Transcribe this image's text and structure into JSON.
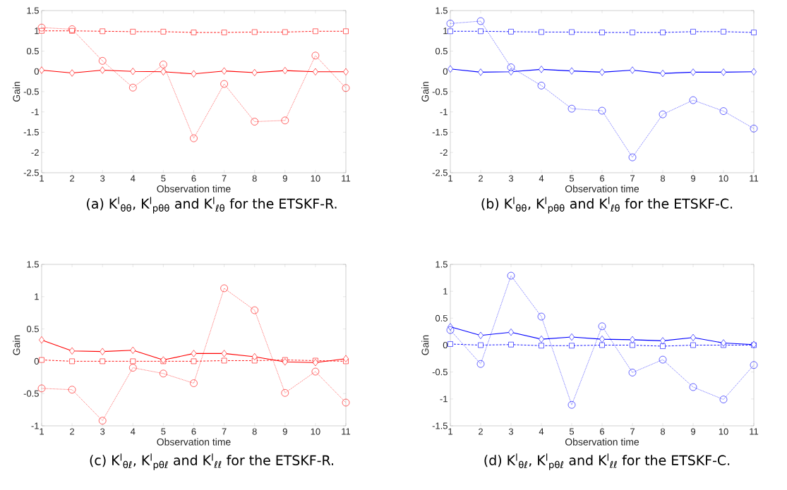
{
  "chart_data": [
    {
      "type": "line",
      "xlabel": "Observation time",
      "ylabel": "Gain",
      "x": [
        1,
        2,
        3,
        4,
        5,
        6,
        7,
        8,
        9,
        10,
        11
      ],
      "xlim": [
        1,
        11
      ],
      "xticks": [
        1,
        2,
        3,
        4,
        5,
        6,
        7,
        8,
        9,
        10,
        11
      ],
      "ylim": [
        -2.5,
        1.5
      ],
      "yticks": [
        -2.5,
        -2,
        -1.5,
        -1,
        -0.5,
        0,
        0.5,
        1,
        1.5
      ],
      "annotations": [
        "(a) K$^{l}$$_{θθ}$, K$^{l}$$_{pθθ}$ and K$^{l}$$_{ℓθ}$ for the ETSKF-R."
      ],
      "series": [
        {
          "color": "#ff0000",
          "marker": "square",
          "line_style": "dashed",
          "values": [
            1.0,
            1.0,
            0.99,
            0.98,
            0.98,
            0.96,
            0.96,
            0.97,
            0.97,
            0.99,
            0.99
          ]
        },
        {
          "color": "#ff0000",
          "marker": "diamond",
          "line_style": "solid",
          "values": [
            0.03,
            -0.04,
            0.03,
            0,
            -0.01,
            -0.06,
            0.01,
            -0.03,
            0.02,
            -0.01,
            -0.01
          ]
        },
        {
          "color": "#ff0000",
          "marker": "circle",
          "line_style": "dotted",
          "values": [
            1.08,
            1.04,
            0.26,
            -0.4,
            0.17,
            -1.65,
            -0.31,
            -1.24,
            -1.21,
            0.39,
            -0.41
          ]
        }
      ]
    },
    {
      "type": "line",
      "xlabel": "Observation time",
      "ylabel": "Gain",
      "x": [
        1,
        2,
        3,
        4,
        5,
        6,
        7,
        8,
        9,
        10,
        11
      ],
      "xlim": [
        1,
        11
      ],
      "xticks": [
        1,
        2,
        3,
        4,
        5,
        6,
        7,
        8,
        9,
        10,
        11
      ],
      "ylim": [
        -2.5,
        1.5
      ],
      "yticks": [
        -2.5,
        -2,
        -1.5,
        -1,
        -0.5,
        0,
        0.5,
        1,
        1.5
      ],
      "annotations": [
        "(b) K$^{l}$$_{θθ}$, K$^{l}$$_{pθθ}$ and K$^{l}$$_{ℓθ}$ for the ETSKF-C."
      ],
      "series": [
        {
          "color": "#0000ff",
          "marker": "square",
          "line_style": "dashed",
          "values": [
            0.99,
            0.99,
            0.98,
            0.97,
            0.97,
            0.96,
            0.96,
            0.96,
            0.98,
            0.98,
            0.96
          ]
        },
        {
          "color": "#0000ff",
          "marker": "diamond",
          "line_style": "solid",
          "values": [
            0.06,
            -0.02,
            -0.01,
            0.05,
            0.01,
            -0.02,
            0.03,
            -0.05,
            -0.02,
            -0.02,
            -0.01
          ]
        },
        {
          "color": "#0000ff",
          "marker": "circle",
          "line_style": "dotted",
          "values": [
            1.18,
            1.24,
            0.1,
            -0.35,
            -0.92,
            -0.97,
            -2.12,
            -1.06,
            -0.71,
            -0.98,
            -1.41
          ]
        }
      ]
    },
    {
      "type": "line",
      "xlabel": "Observation time",
      "ylabel": "Gain",
      "x": [
        1,
        2,
        3,
        4,
        5,
        6,
        7,
        8,
        9,
        10,
        11
      ],
      "xlim": [
        1,
        11
      ],
      "xticks": [
        1,
        2,
        3,
        4,
        5,
        6,
        7,
        8,
        9,
        10,
        11
      ],
      "ylim": [
        -1,
        1.5
      ],
      "yticks": [
        -1,
        -0.5,
        0,
        0.5,
        1,
        1.5
      ],
      "annotations": [
        "(c) K$^{l}$$_{θℓ}$, K$^{l}$$_{pθℓ}$ and K$^{l}$$_{ℓℓ}$ for the ETSKF-R."
      ],
      "series": [
        {
          "color": "#ff0000",
          "marker": "square",
          "line_style": "dashed",
          "values": [
            0.02,
            0,
            0,
            0,
            0,
            0,
            0.01,
            0.01,
            0.02,
            0.01,
            0
          ]
        },
        {
          "color": "#ff0000",
          "marker": "diamond",
          "line_style": "solid",
          "values": [
            0.33,
            0.16,
            0.15,
            0.17,
            0.02,
            0.12,
            0.12,
            0.07,
            -0.01,
            -0.02,
            0.04
          ]
        },
        {
          "color": "#ff0000",
          "marker": "circle",
          "line_style": "dotted",
          "values": [
            -0.42,
            -0.44,
            -0.92,
            -0.1,
            -0.19,
            -0.34,
            1.13,
            0.79,
            -0.49,
            -0.16,
            -0.64
          ]
        }
      ]
    },
    {
      "type": "line",
      "xlabel": "Observation time",
      "ylabel": "Gain",
      "x": [
        1,
        2,
        3,
        4,
        5,
        6,
        7,
        8,
        9,
        10,
        11
      ],
      "xlim": [
        1,
        11
      ],
      "xticks": [
        1,
        2,
        3,
        4,
        5,
        6,
        7,
        8,
        9,
        10,
        11
      ],
      "ylim": [
        -1.5,
        1.5
      ],
      "yticks": [
        -1.5,
        -1,
        -0.5,
        0,
        0.5,
        1,
        1.5
      ],
      "annotations": [
        "(d) K$^{l}$$_{θℓ}$, K$^{l}$$_{pθℓ}$ and K$^{l}$$_{ℓℓ}$ for the ETSKF-C."
      ],
      "series": [
        {
          "color": "#0000ff",
          "marker": "square",
          "line_style": "dashed",
          "values": [
            0.02,
            0,
            0.01,
            -0.01,
            -0.01,
            0,
            0,
            -0.02,
            0,
            0,
            0
          ]
        },
        {
          "color": "#0000ff",
          "marker": "diamond",
          "line_style": "solid",
          "values": [
            0.34,
            0.18,
            0.24,
            0.11,
            0.15,
            0.11,
            0.1,
            0.08,
            0.14,
            0.04,
            0.01
          ]
        },
        {
          "color": "#0000ff",
          "marker": "circle",
          "line_style": "dotted",
          "values": [
            0.28,
            -0.35,
            1.29,
            0.53,
            -1.11,
            0.35,
            -0.51,
            -0.27,
            -0.78,
            -1.01,
            -0.37
          ]
        }
      ]
    }
  ]
}
